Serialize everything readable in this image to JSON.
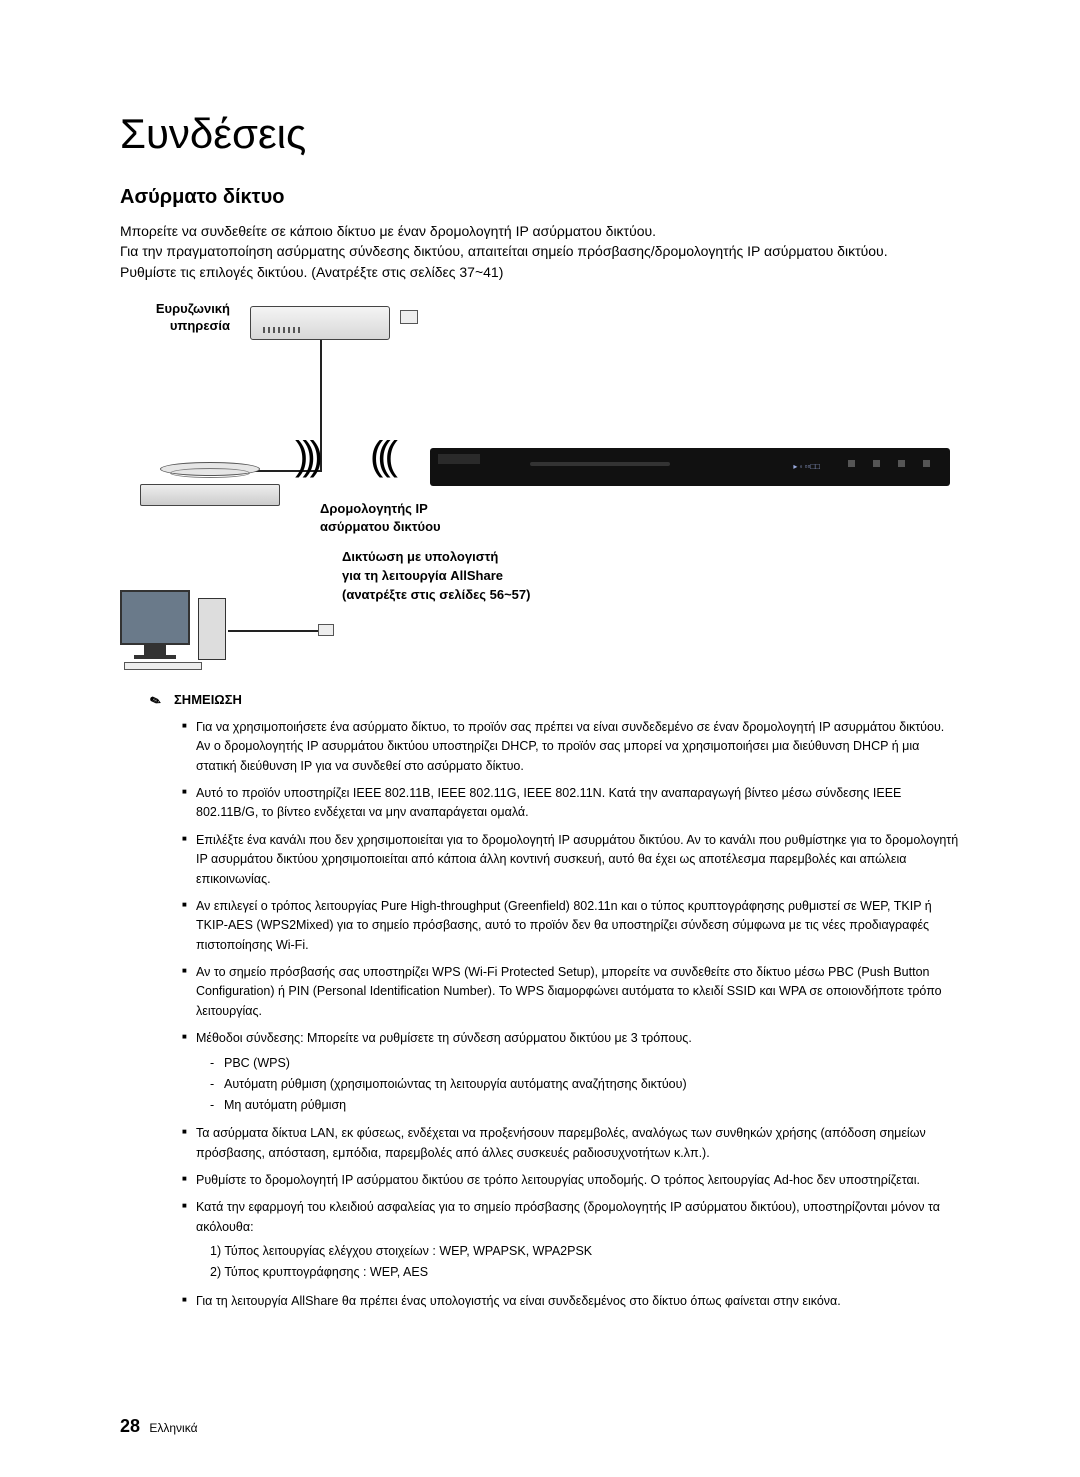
{
  "title": "Συνδέσεις",
  "section": "Ασύρματο δίκτυο",
  "intro": {
    "p1": "Μπορείτε να συνδεθείτε σε κάποιο δίκτυο με έναν δρομολογητή IP ασύρματου δικτύου.",
    "p2": "Για την πραγματοποίηση ασύρματης σύνδεσης δικτύου, απαιτείται σημείο πρόσβασης/δρομολογητής IP ασύρματου δικτύου.",
    "p3": "Ρυθμίστε τις επιλογές δικτύου. (Ανατρέξτε στις σελίδες 37~41)"
  },
  "diagram": {
    "broadband_l1": "Ευρυζωνική",
    "broadband_l2": "υπηρεσία",
    "router_l1": "Δρομολογητής IP",
    "router_l2": "ασύρματου δικτύου",
    "allshare_l1": "Δικτύωση με υπολογιστή",
    "allshare_l2": "για τη λειτουργία AllShare",
    "allshare_l3": "(ανατρέξτε στις σελίδες 56~57)",
    "waves_out": ")))",
    "waves_in": "(((",
    "player_led": "▸ ◦ ▫▫□□"
  },
  "note_heading": "ΣΗΜΕΙΩΣΗ",
  "notes": {
    "n1": "Για να χρησιμοποιήσετε ένα ασύρματο δίκτυο, το προϊόν σας πρέπει να είναι συνδεδεμένο σε έναν δρομολογητή IP ασυρμάτου δικτύου. Αν ο δρομολογητής IP ασυρμάτου δικτύου υποστηρίζει DHCP, το προϊόν σας μπορεί να χρησιμοποιήσει μια διεύθυνση DHCP ή μια στατική διεύθυνση IP για να συνδεθεί στο ασύρματο δίκτυο.",
    "n2": "Αυτό το προϊόν υποστηρίζει IEEE 802.11B, IEEE 802.11G, IEEE 802.11N. Κατά την αναπαραγωγή βίντεο μέσω σύνδεσης IEEE 802.11B/G, το βίντεο ενδέχεται να μην αναπαράγεται ομαλά.",
    "n3": "Επιλέξτε ένα κανάλι που δεν χρησιμοποιείται για το δρομολογητή IP ασυρμάτου δικτύου. Αν το κανάλι που ρυθμίστηκε για το δρομολογητή IP ασυρμάτου δικτύου χρησιμοποιείται από κάποια άλλη κοντινή συσκευή, αυτό θα έχει ως αποτέλεσμα παρεμβολές και απώλεια επικοινωνίας.",
    "n4": "Αν επιλεγεί ο τρόπος λειτουργίας Pure High-throughput (Greenfield) 802.11n και ο τύπος κρυπτογράφησης ρυθμιστεί σε WEP, TKIP ή TKIP-AES (WPS2Mixed) για το σημείο πρόσβασης, αυτό το προϊόν δεν θα υποστηρίζει σύνδεση σύμφωνα με τις νέες προδιαγραφές πιστοποίησης Wi-Fi.",
    "n5": "Αν το σημείο πρόσβασής σας υποστηρίζει WPS (Wi-Fi Protected Setup), μπορείτε να συνδεθείτε στο δίκτυο μέσω PBC (Push Button Configuration) ή PIN (Personal Identification Number). Το WPS διαμορφώνει αυτόματα το κλειδί SSID και WPA σε οποιονδήποτε τρόπο λειτουργίας.",
    "n6": "Μέθοδοι σύνδεσης: Μπορείτε να ρυθμίσετε τη σύνδεση ασύρματου δικτύου με 3 τρόπους.",
    "n6a": "PBC (WPS)",
    "n6b": "Αυτόματη ρύθμιση (χρησιμοποιώντας τη λειτουργία αυτόματης αναζήτησης δικτύου)",
    "n6c": "Μη αυτόματη ρύθμιση",
    "n7": "Τα ασύρματα δίκτυα LAN, εκ φύσεως, ενδέχεται να προξενήσουν παρεμβολές, αναλόγως των συνθηκών χρήσης (απόδοση σημείων πρόσβασης, απόσταση, εμπόδια, παρεμβολές από άλλες συσκευές ραδιοσυχνοτήτων κ.λπ.).",
    "n8": "Ρυθμίστε το δρομολογητή IP ασύρματου δικτύου σε τρόπο λειτουργίας υποδομής. Ο τρόπος λειτουργίας Ad-hoc δεν υποστηρίζεται.",
    "n9": "Κατά την εφαρμογή του κλειδιού ασφαλείας για το σημείο πρόσβασης (δρομολογητής IP ασύρματου δικτύου), υποστηρίζονται μόνον τα ακόλουθα:",
    "n9a": "1)  Τύπος λειτουργίας ελέγχου στοιχείων : WEP, WPAPSK, WPA2PSK",
    "n9b": "2)  Τύπος κρυπτογράφησης : WEP, AES",
    "n10": "Για τη λειτουργία AllShare θα πρέπει ένας υπολογιστής να είναι συνδεδεμένος στο δίκτυο όπως φαίνεται στην εικόνα."
  },
  "footer": {
    "page": "28",
    "lang": "Ελληνικά"
  }
}
